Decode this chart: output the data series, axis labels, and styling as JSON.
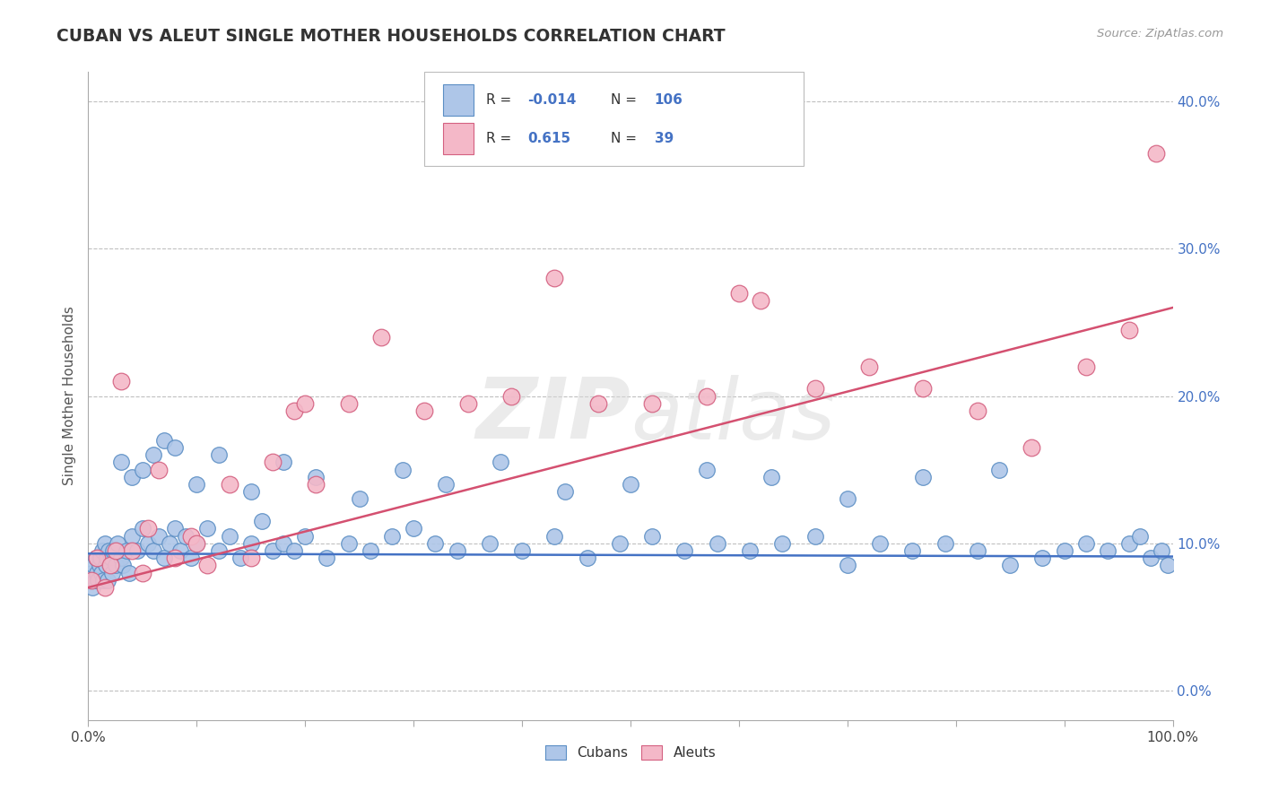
{
  "title": "CUBAN VS ALEUT SINGLE MOTHER HOUSEHOLDS CORRELATION CHART",
  "source": "Source: ZipAtlas.com",
  "ylabel": "Single Mother Households",
  "cuban_R": -0.014,
  "cuban_N": 106,
  "aleut_R": 0.615,
  "aleut_N": 39,
  "cuban_color": "#aec6e8",
  "aleut_color": "#f4b8c8",
  "cuban_edge_color": "#5b8ec4",
  "aleut_edge_color": "#d46080",
  "cuban_line_color": "#4472c4",
  "aleut_line_color": "#d45070",
  "watermark_text": "ZIPatlas",
  "background_color": "#ffffff",
  "xlim": [
    0,
    100
  ],
  "ylim": [
    -2,
    42
  ],
  "ytick_vals": [
    0,
    10,
    20,
    30,
    40
  ],
  "ytick_labels": [
    "0.0%",
    "10.0%",
    "20.0%",
    "30.0%",
    "40.0%"
  ],
  "cuban_x": [
    0.2,
    0.3,
    0.4,
    0.5,
    0.6,
    0.7,
    0.8,
    0.9,
    1.0,
    1.1,
    1.2,
    1.3,
    1.4,
    1.5,
    1.6,
    1.7,
    1.8,
    1.9,
    2.0,
    2.1,
    2.2,
    2.3,
    2.5,
    2.7,
    3.0,
    3.2,
    3.5,
    3.8,
    4.0,
    4.5,
    5.0,
    5.5,
    6.0,
    6.5,
    7.0,
    7.5,
    8.0,
    8.5,
    9.0,
    9.5,
    10.0,
    11.0,
    12.0,
    13.0,
    14.0,
    15.0,
    16.0,
    17.0,
    18.0,
    19.0,
    20.0,
    22.0,
    24.0,
    26.0,
    28.0,
    30.0,
    32.0,
    34.0,
    37.0,
    40.0,
    43.0,
    46.0,
    49.0,
    52.0,
    55.0,
    58.0,
    61.0,
    64.0,
    67.0,
    70.0,
    73.0,
    76.0,
    79.0,
    82.0,
    85.0,
    88.0,
    90.0,
    92.0,
    94.0,
    96.0,
    97.0,
    98.0,
    99.0,
    99.5,
    4.0,
    6.0,
    3.0,
    7.0,
    5.0,
    8.0,
    10.0,
    12.0,
    15.0,
    18.0,
    21.0,
    25.0,
    29.0,
    33.0,
    38.0,
    44.0,
    50.0,
    57.0,
    63.0,
    70.0,
    77.0,
    84.0
  ],
  "cuban_y": [
    7.5,
    8.0,
    7.0,
    8.5,
    7.5,
    9.0,
    8.0,
    7.5,
    8.5,
    9.0,
    8.0,
    9.5,
    7.5,
    10.0,
    8.5,
    9.0,
    7.5,
    9.5,
    8.5,
    9.0,
    8.0,
    9.5,
    8.5,
    10.0,
    9.0,
    8.5,
    9.5,
    8.0,
    10.5,
    9.5,
    11.0,
    10.0,
    9.5,
    10.5,
    9.0,
    10.0,
    11.0,
    9.5,
    10.5,
    9.0,
    10.0,
    11.0,
    9.5,
    10.5,
    9.0,
    10.0,
    11.5,
    9.5,
    10.0,
    9.5,
    10.5,
    9.0,
    10.0,
    9.5,
    10.5,
    11.0,
    10.0,
    9.5,
    10.0,
    9.5,
    10.5,
    9.0,
    10.0,
    10.5,
    9.5,
    10.0,
    9.5,
    10.0,
    10.5,
    8.5,
    10.0,
    9.5,
    10.0,
    9.5,
    8.5,
    9.0,
    9.5,
    10.0,
    9.5,
    10.0,
    10.5,
    9.0,
    9.5,
    8.5,
    14.5,
    16.0,
    15.5,
    17.0,
    15.0,
    16.5,
    14.0,
    16.0,
    13.5,
    15.5,
    14.5,
    13.0,
    15.0,
    14.0,
    15.5,
    13.5,
    14.0,
    15.0,
    14.5,
    13.0,
    14.5,
    15.0
  ],
  "aleut_x": [
    0.3,
    0.8,
    1.5,
    2.0,
    3.0,
    4.0,
    5.0,
    6.5,
    8.0,
    9.5,
    11.0,
    13.0,
    15.0,
    17.0,
    19.0,
    21.0,
    24.0,
    27.0,
    31.0,
    35.0,
    39.0,
    43.0,
    47.0,
    52.0,
    57.0,
    62.0,
    67.0,
    72.0,
    77.0,
    82.0,
    87.0,
    92.0,
    96.0,
    98.5,
    2.5,
    5.5,
    10.0,
    20.0,
    60.0
  ],
  "aleut_y": [
    7.5,
    9.0,
    7.0,
    8.5,
    21.0,
    9.5,
    8.0,
    15.0,
    9.0,
    10.5,
    8.5,
    14.0,
    9.0,
    15.5,
    19.0,
    14.0,
    19.5,
    24.0,
    19.0,
    19.5,
    20.0,
    28.0,
    19.5,
    19.5,
    20.0,
    26.5,
    20.5,
    22.0,
    20.5,
    19.0,
    16.5,
    22.0,
    24.5,
    36.5,
    9.5,
    11.0,
    10.0,
    19.5,
    27.0
  ]
}
